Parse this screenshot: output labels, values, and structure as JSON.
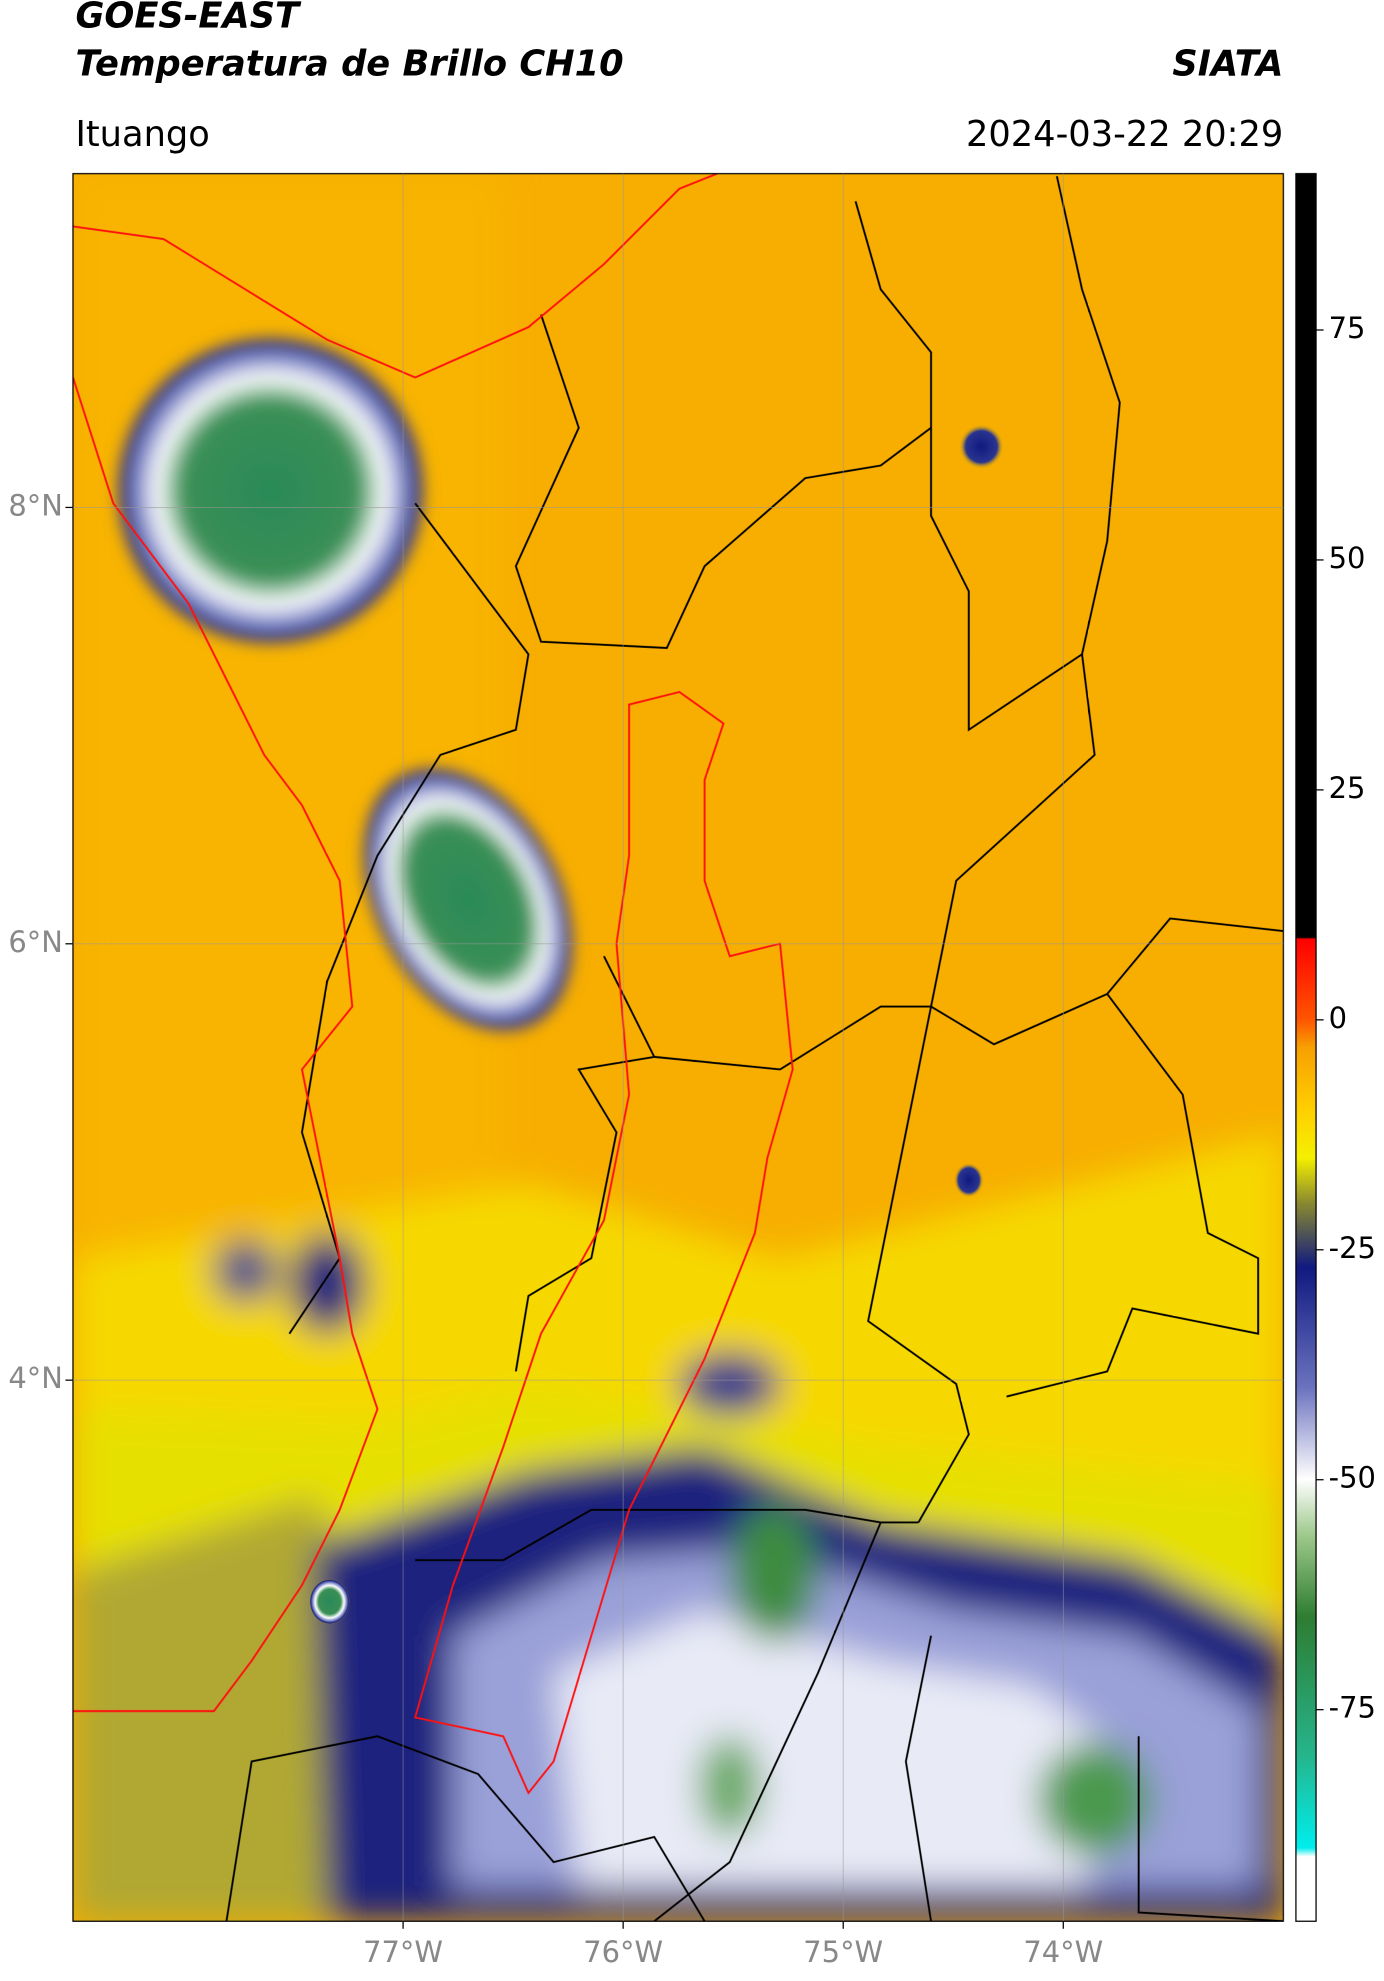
{
  "header": {
    "title": "GOES-EAST",
    "subtitle": "Temperatura de Brillo CH10",
    "source": "SIATA",
    "location": "Ituango",
    "timestamp": "2024-03-22 20:29"
  },
  "map": {
    "xlim": [
      -78.5,
      -73
    ],
    "ylim": [
      1.52,
      9.53
    ],
    "xticks": [
      {
        "value": -77,
        "label": "77°W"
      },
      {
        "value": -76,
        "label": "76°W"
      },
      {
        "value": -75,
        "label": "75°W"
      },
      {
        "value": -74,
        "label": "74°W"
      }
    ],
    "yticks": [
      {
        "value": 8,
        "label": "8°N"
      },
      {
        "value": 6,
        "label": "6°N"
      },
      {
        "value": 4,
        "label": "4°N"
      }
    ],
    "grid": true
  },
  "colorbar": {
    "lim": [
      -98,
      92
    ],
    "ticks": [
      75,
      50,
      25,
      0,
      -25,
      -50,
      -75
    ]
  }
}
